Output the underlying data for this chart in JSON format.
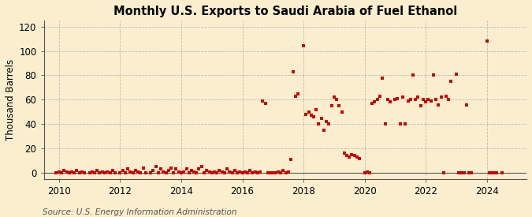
{
  "title": "Monthly U.S. Exports to Saudi Arabia of Fuel Ethanol",
  "ylabel": "Thousand Barrels",
  "source": "Source: U.S. Energy Information Administration",
  "background_color": "#faeece",
  "dot_color": "#cc0000",
  "ylim": [
    -5,
    125
  ],
  "yticks": [
    0,
    20,
    40,
    60,
    80,
    100,
    120
  ],
  "xlim": [
    2009.5,
    2025.3
  ],
  "xticks": [
    2010,
    2012,
    2014,
    2016,
    2018,
    2020,
    2022,
    2024
  ],
  "data": [
    [
      2009.9,
      0
    ],
    [
      2010.0,
      1
    ],
    [
      2010.08,
      0
    ],
    [
      2010.17,
      2
    ],
    [
      2010.25,
      1
    ],
    [
      2010.33,
      0
    ],
    [
      2010.42,
      1
    ],
    [
      2010.5,
      0
    ],
    [
      2010.58,
      2
    ],
    [
      2010.67,
      0
    ],
    [
      2010.75,
      1
    ],
    [
      2010.83,
      0
    ],
    [
      2011.0,
      0
    ],
    [
      2011.08,
      1
    ],
    [
      2011.17,
      0
    ],
    [
      2011.25,
      2
    ],
    [
      2011.33,
      0
    ],
    [
      2011.42,
      1
    ],
    [
      2011.5,
      0
    ],
    [
      2011.58,
      1
    ],
    [
      2011.67,
      0
    ],
    [
      2011.75,
      2
    ],
    [
      2011.83,
      0
    ],
    [
      2012.0,
      0
    ],
    [
      2012.08,
      2
    ],
    [
      2012.17,
      0
    ],
    [
      2012.25,
      3
    ],
    [
      2012.33,
      1
    ],
    [
      2012.42,
      0
    ],
    [
      2012.5,
      2
    ],
    [
      2012.58,
      1
    ],
    [
      2012.67,
      0
    ],
    [
      2012.75,
      4
    ],
    [
      2012.83,
      0
    ],
    [
      2013.0,
      0
    ],
    [
      2013.08,
      2
    ],
    [
      2013.17,
      5
    ],
    [
      2013.25,
      0
    ],
    [
      2013.33,
      3
    ],
    [
      2013.42,
      1
    ],
    [
      2013.5,
      0
    ],
    [
      2013.58,
      2
    ],
    [
      2013.67,
      4
    ],
    [
      2013.75,
      0
    ],
    [
      2013.83,
      3
    ],
    [
      2013.92,
      1
    ],
    [
      2014.0,
      0
    ],
    [
      2014.08,
      1
    ],
    [
      2014.17,
      3
    ],
    [
      2014.25,
      0
    ],
    [
      2014.33,
      2
    ],
    [
      2014.42,
      1
    ],
    [
      2014.5,
      0
    ],
    [
      2014.58,
      3
    ],
    [
      2014.67,
      5
    ],
    [
      2014.75,
      0
    ],
    [
      2014.83,
      2
    ],
    [
      2014.92,
      1
    ],
    [
      2015.0,
      0
    ],
    [
      2015.08,
      1
    ],
    [
      2015.17,
      0
    ],
    [
      2015.25,
      2
    ],
    [
      2015.33,
      1
    ],
    [
      2015.42,
      0
    ],
    [
      2015.5,
      3
    ],
    [
      2015.58,
      1
    ],
    [
      2015.67,
      0
    ],
    [
      2015.75,
      2
    ],
    [
      2015.83,
      0
    ],
    [
      2015.92,
      1
    ],
    [
      2016.0,
      0
    ],
    [
      2016.08,
      1
    ],
    [
      2016.17,
      0
    ],
    [
      2016.25,
      2
    ],
    [
      2016.33,
      0
    ],
    [
      2016.42,
      1
    ],
    [
      2016.5,
      0
    ],
    [
      2016.58,
      1
    ],
    [
      2016.67,
      59
    ],
    [
      2016.75,
      57
    ],
    [
      2016.83,
      0
    ],
    [
      2016.92,
      0
    ],
    [
      2017.0,
      0
    ],
    [
      2017.08,
      0
    ],
    [
      2017.17,
      1
    ],
    [
      2017.25,
      0
    ],
    [
      2017.33,
      2
    ],
    [
      2017.42,
      0
    ],
    [
      2017.5,
      1
    ],
    [
      2017.58,
      11
    ],
    [
      2017.67,
      83
    ],
    [
      2017.75,
      63
    ],
    [
      2017.83,
      65
    ],
    [
      2018.0,
      104
    ],
    [
      2018.08,
      48
    ],
    [
      2018.17,
      50
    ],
    [
      2018.25,
      47
    ],
    [
      2018.33,
      46
    ],
    [
      2018.42,
      52
    ],
    [
      2018.5,
      40
    ],
    [
      2018.58,
      45
    ],
    [
      2018.67,
      35
    ],
    [
      2018.75,
      42
    ],
    [
      2018.83,
      40
    ],
    [
      2018.92,
      55
    ],
    [
      2019.0,
      62
    ],
    [
      2019.08,
      60
    ],
    [
      2019.17,
      55
    ],
    [
      2019.25,
      50
    ],
    [
      2019.33,
      16
    ],
    [
      2019.42,
      14
    ],
    [
      2019.5,
      13
    ],
    [
      2019.58,
      15
    ],
    [
      2019.67,
      14
    ],
    [
      2019.75,
      13
    ],
    [
      2019.83,
      12
    ],
    [
      2020.0,
      0
    ],
    [
      2020.08,
      1
    ],
    [
      2020.17,
      0
    ],
    [
      2020.25,
      57
    ],
    [
      2020.33,
      58
    ],
    [
      2020.42,
      60
    ],
    [
      2020.5,
      63
    ],
    [
      2020.58,
      78
    ],
    [
      2020.67,
      40
    ],
    [
      2020.75,
      60
    ],
    [
      2020.83,
      58
    ],
    [
      2021.0,
      60
    ],
    [
      2021.08,
      61
    ],
    [
      2021.17,
      40
    ],
    [
      2021.25,
      62
    ],
    [
      2021.33,
      40
    ],
    [
      2021.42,
      59
    ],
    [
      2021.5,
      60
    ],
    [
      2021.58,
      80
    ],
    [
      2021.67,
      60
    ],
    [
      2021.75,
      62
    ],
    [
      2021.83,
      55
    ],
    [
      2021.92,
      60
    ],
    [
      2022.0,
      58
    ],
    [
      2022.08,
      60
    ],
    [
      2022.17,
      59
    ],
    [
      2022.25,
      80
    ],
    [
      2022.33,
      60
    ],
    [
      2022.42,
      56
    ],
    [
      2022.5,
      62
    ],
    [
      2022.58,
      0
    ],
    [
      2022.67,
      63
    ],
    [
      2022.75,
      60
    ],
    [
      2022.83,
      75
    ],
    [
      2023.0,
      81
    ],
    [
      2023.08,
      0
    ],
    [
      2023.17,
      0
    ],
    [
      2023.25,
      0
    ],
    [
      2023.33,
      56
    ],
    [
      2023.42,
      0
    ],
    [
      2023.5,
      0
    ],
    [
      2024.0,
      108
    ],
    [
      2024.08,
      0
    ],
    [
      2024.17,
      0
    ],
    [
      2024.25,
      0
    ],
    [
      2024.33,
      0
    ],
    [
      2024.5,
      0
    ]
  ]
}
